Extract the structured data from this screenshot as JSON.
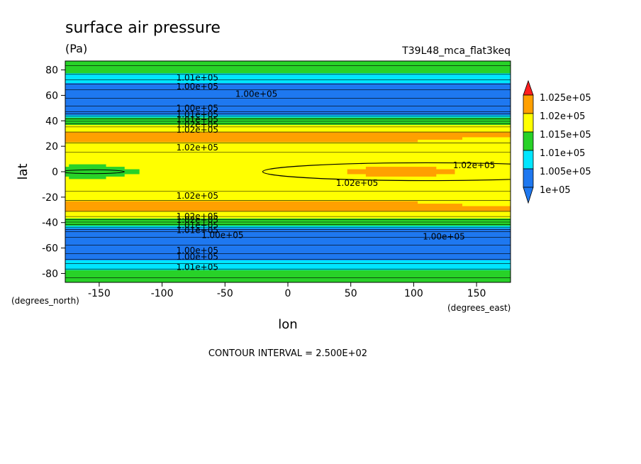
{
  "chart_data": {
    "type": "heatmap",
    "title": "surface air pressure",
    "subtitle": "(Pa)",
    "dataset_label": "T39L48_mca_flat3keq",
    "xlabel": "lon",
    "ylabel": "lat",
    "x_units": "(degrees_east)",
    "y_units": "(degrees_north)",
    "xlim": [
      -177,
      177
    ],
    "ylim": [
      -87,
      87
    ],
    "x_ticks": [
      -150,
      -100,
      -50,
      0,
      50,
      100,
      150
    ],
    "y_ticks": [
      -80,
      -60,
      -40,
      -20,
      0,
      20,
      40,
      60,
      80
    ],
    "footer": "CONTOUR INTERVAL = 2.500E+02",
    "colorbar": {
      "labels": [
        "1e+05",
        "1.005e+05",
        "1.01e+05",
        "1.015e+05",
        "1.02e+05",
        "1.025e+05"
      ],
      "levels": [
        100000,
        100500,
        101000,
        101500,
        102000,
        102500
      ],
      "colors": [
        "#1e78f0",
        "#00e6ff",
        "#28d228",
        "#ffff00",
        "#ffa000",
        "#ff1e1e"
      ]
    },
    "zonal_profile": {
      "lat": [
        87,
        80,
        73,
        67,
        62,
        55,
        48,
        44,
        40,
        36,
        32,
        28,
        20,
        12,
        6,
        0,
        -6,
        -12,
        -20,
        -28,
        -32,
        -36,
        -40,
        -44,
        -48,
        -55,
        -62,
        -67,
        -73,
        -80,
        -87
      ],
      "pressure": [
        101300,
        101200,
        100800,
        100350,
        100150,
        99900,
        100100,
        100700,
        101200,
        101700,
        101950,
        102200,
        101900,
        101650,
        101550,
        101500,
        101550,
        101650,
        101900,
        102200,
        101950,
        101700,
        101200,
        100700,
        100100,
        99900,
        100150,
        100350,
        100800,
        101200,
        101300
      ]
    },
    "contour_labels": [
      {
        "text": "1.01e+05",
        "lon": -72,
        "lat": 74
      },
      {
        "text": "1.00e+05",
        "lon": -72,
        "lat": 67
      },
      {
        "text": "1.00e+05",
        "lon": -25,
        "lat": 61
      },
      {
        "text": "1.00e+05",
        "lon": -72,
        "lat": 50
      },
      {
        "text": "1.01e+05",
        "lon": -72,
        "lat": 45
      },
      {
        "text": "1.01e+05",
        "lon": -72,
        "lat": 41
      },
      {
        "text": "1.02e+05",
        "lon": -72,
        "lat": 37
      },
      {
        "text": "1.02e+05",
        "lon": -72,
        "lat": 33
      },
      {
        "text": "1.02e+05",
        "lon": -72,
        "lat": 19
      },
      {
        "text": "1.02e+05",
        "lon": 148,
        "lat": 5
      },
      {
        "text": "1.02e+05",
        "lon": 55,
        "lat": -9
      },
      {
        "text": "1.02e+05",
        "lon": -72,
        "lat": -19
      },
      {
        "text": "1.02e+05",
        "lon": -72,
        "lat": -35
      },
      {
        "text": "1.02e+05",
        "lon": -72,
        "lat": -38
      },
      {
        "text": "1.01e+05",
        "lon": -72,
        "lat": -42
      },
      {
        "text": "1.01e+05",
        "lon": -72,
        "lat": -46
      },
      {
        "text": "1.00e+05",
        "lon": -52,
        "lat": -50
      },
      {
        "text": "1.00e+05",
        "lon": 124,
        "lat": -51
      },
      {
        "text": "1.00e+05",
        "lon": -72,
        "lat": -62
      },
      {
        "text": "1.00e+05",
        "lon": -72,
        "lat": -67
      },
      {
        "text": "1.01e+05",
        "lon": -72,
        "lat": -75
      }
    ]
  }
}
